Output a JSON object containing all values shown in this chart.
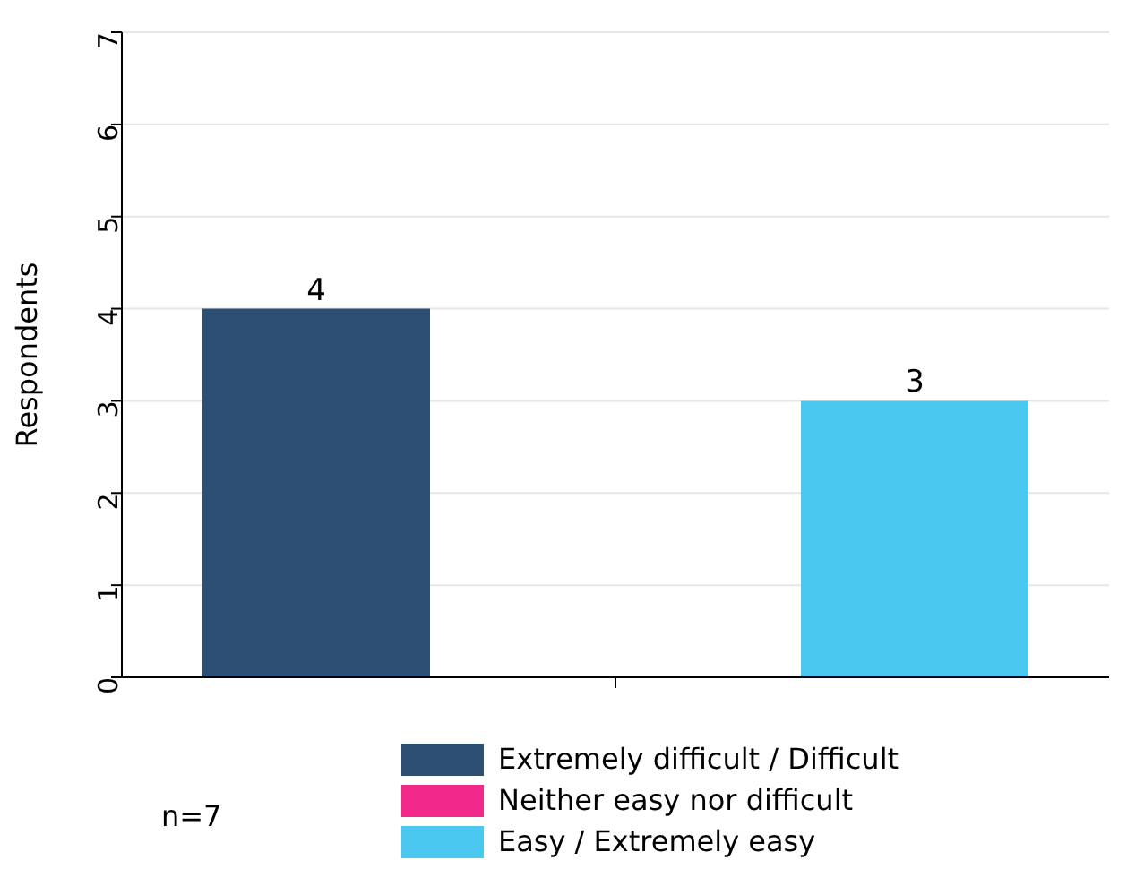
{
  "chart_data": {
    "type": "bar",
    "ylabel": "Respondents",
    "categories": [
      null
    ],
    "series": [
      {
        "name": "Extremely difficult / Difficult",
        "color": "#2c4f73",
        "values": [
          4
        ]
      },
      {
        "name": "Neither easy nor difficult",
        "color": "#f0298b",
        "values": [
          null
        ]
      },
      {
        "name": "Easy / Extremely easy",
        "color": "#4ac8ef",
        "values": [
          3
        ]
      }
    ],
    "ylim": [
      0,
      7
    ],
    "yticks": [
      0,
      1,
      2,
      3,
      4,
      5,
      6,
      7
    ],
    "grid": "y",
    "legend": "bottom",
    "data_labels": true,
    "annotations": [
      "n=7"
    ]
  }
}
